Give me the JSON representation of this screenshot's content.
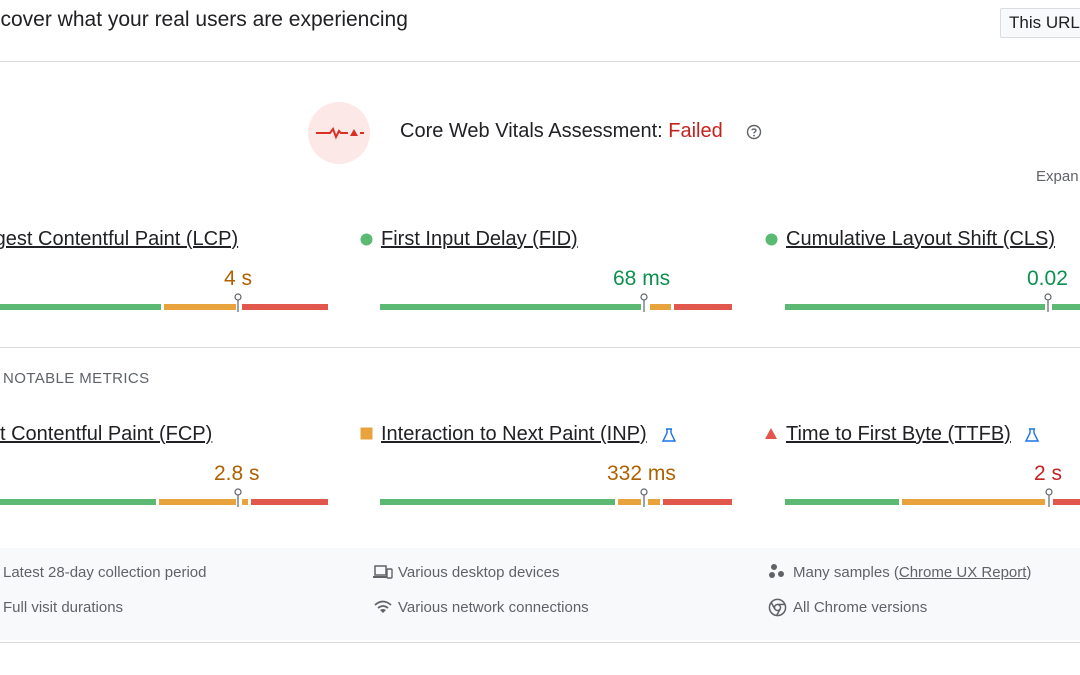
{
  "header": {
    "title": "scover what your real users are experiencing",
    "url_toggle_label": "This URL"
  },
  "assessment": {
    "label": "Core Web Vitals Assessment: ",
    "status": "Failed",
    "expand_label": "Expan"
  },
  "core_metrics": [
    {
      "title": "rgest Contentful Paint (LCP)",
      "value": "4 s",
      "rating": "needs-improvement",
      "marker_fraction": 0.73
    },
    {
      "title": "First Input Delay (FID)",
      "value": "68 ms",
      "rating": "good",
      "marker_fraction": 0.75
    },
    {
      "title": "Cumulative Layout Shift (CLS)",
      "value": "0.02",
      "rating": "good",
      "marker_fraction": 0.89
    }
  ],
  "notable_label": "NOTABLE METRICS",
  "other_metrics": [
    {
      "title": "st Contentful Paint (FCP)",
      "value": "2.8 s",
      "rating": "needs-improvement",
      "marker_fraction": 0.73
    },
    {
      "title": "Interaction to Next Paint (INP)",
      "value": "332 ms",
      "rating": "needs-improvement",
      "marker_fraction": 0.75,
      "experimental": true
    },
    {
      "title": "Time to First Byte (TTFB)",
      "value": "2 s",
      "rating": "poor",
      "marker_fraction": 0.91,
      "experimental": true
    }
  ],
  "info": {
    "collection_period": "Latest 28-day collection period",
    "visit_durations": "Full visit durations",
    "devices": "Various desktop devices",
    "network": "Various network connections",
    "samples_prefix": "Many samples (",
    "samples_link": "Chrome UX Report",
    "samples_suffix": ")",
    "chrome_versions": "All Chrome versions"
  },
  "colors": {
    "good": "#0d904f",
    "needs_improvement": "#b06000",
    "poor": "#c5221f",
    "bar_good": "#5bb974",
    "bar_ni": "#e8a33c",
    "bar_poor": "#e2574c"
  }
}
